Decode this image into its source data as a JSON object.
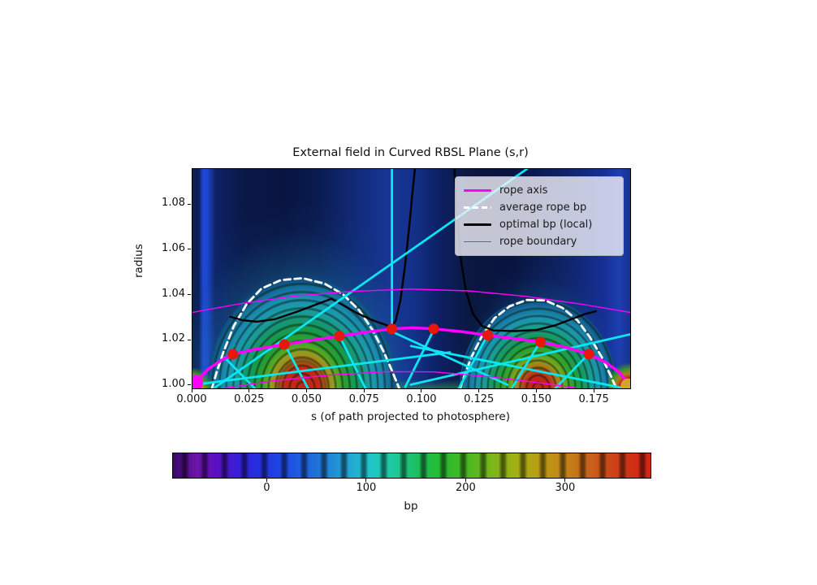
{
  "figure": {
    "background": "#ffffff"
  },
  "chart_data": {
    "type": "heatmap",
    "title": "External field in Curved RBSL Plane (s,r)",
    "xlabel": "s (of path projected to photosphere)",
    "ylabel": "radius",
    "xlim": [
      0.0,
      0.1905
    ],
    "ylim": [
      0.9989,
      1.0959
    ],
    "grid": false,
    "x_ticks": {
      "values": [
        0.0,
        0.025,
        0.05,
        0.075,
        0.1,
        0.125,
        0.15,
        0.175
      ],
      "labels": [
        "0.000",
        "0.025",
        "0.050",
        "0.075",
        "0.100",
        "0.125",
        "0.150",
        "0.175"
      ]
    },
    "y_ticks": {
      "values": [
        1.0,
        1.02,
        1.04,
        1.06,
        1.08
      ],
      "labels": [
        "1.00",
        "1.02",
        "1.04",
        "1.06",
        "1.08"
      ]
    },
    "colorbar": {
      "label": "bp",
      "tick_values": [
        0,
        100,
        200,
        300
      ],
      "tick_labels": [
        "0",
        "100",
        "200",
        "300"
      ],
      "vmin": -95,
      "vmax": 385,
      "gradient": [
        [
          "#38076a",
          0
        ],
        [
          "#6d15a8",
          5
        ],
        [
          "#5b10c2",
          9
        ],
        [
          "#3520d8",
          14
        ],
        [
          "#2430e0",
          18
        ],
        [
          "#1e4ee4",
          24
        ],
        [
          "#2070d8",
          30
        ],
        [
          "#22a0d4",
          36
        ],
        [
          "#1fc4cc",
          41
        ],
        [
          "#1ec9a0",
          46
        ],
        [
          "#1cc060",
          51
        ],
        [
          "#26bc30",
          56
        ],
        [
          "#4cb822",
          62
        ],
        [
          "#7cb61a",
          67
        ],
        [
          "#a4b014",
          72
        ],
        [
          "#bc9c14",
          77
        ],
        [
          "#c48418",
          82
        ],
        [
          "#c8641a",
          87
        ],
        [
          "#cc4418",
          92
        ],
        [
          "#d22c16",
          97
        ],
        [
          "#d42414",
          100
        ]
      ]
    },
    "legend": {
      "position": "upper right",
      "items": [
        {
          "label": "rope axis",
          "color": "#ff00ff",
          "lw": 3.5,
          "dash": "solid"
        },
        {
          "label": "average rope bp",
          "color": "#ffffff",
          "lw": 3.0,
          "dash": "dashed"
        },
        {
          "label": "optimal bp (local)",
          "color": "#000000",
          "lw": 2.4,
          "dash": "solid"
        },
        {
          "label": "rope boundary",
          "color": "#ff00ff",
          "lw": 1.4,
          "dash": "solid"
        }
      ]
    },
    "series": {
      "rope_axis": {
        "color": "#ff00ff",
        "lw": 3.5,
        "points": [
          [
            0.0005,
            1.0012
          ],
          [
            0.003,
            1.0035
          ],
          [
            0.007,
            1.0075
          ],
          [
            0.012,
            1.011
          ],
          [
            0.0176,
            1.014
          ],
          [
            0.028,
            1.0163
          ],
          [
            0.04,
            1.0183
          ],
          [
            0.052,
            1.0202
          ],
          [
            0.064,
            1.022
          ],
          [
            0.076,
            1.0238
          ],
          [
            0.0868,
            1.0252
          ],
          [
            0.096,
            1.0257
          ],
          [
            0.105,
            1.0252
          ],
          [
            0.117,
            1.024
          ],
          [
            0.1285,
            1.0224
          ],
          [
            0.14,
            1.0209
          ],
          [
            0.1514,
            1.0194
          ],
          [
            0.162,
            1.0172
          ],
          [
            0.1725,
            1.014
          ],
          [
            0.18,
            1.0103
          ],
          [
            0.1855,
            1.0062
          ],
          [
            0.1895,
            1.0012
          ]
        ]
      },
      "rope_boundary": {
        "color": "#ff00ff",
        "lw": 1.4,
        "paths": [
          [
            [
              0.0,
              1.0325
            ],
            [
              0.02,
              1.0362
            ],
            [
              0.045,
              1.0398
            ],
            [
              0.07,
              1.0418
            ],
            [
              0.095,
              1.0428
            ],
            [
              0.12,
              1.042
            ],
            [
              0.145,
              1.0396
            ],
            [
              0.17,
              1.036
            ],
            [
              0.1905,
              1.0325
            ]
          ],
          [
            [
              0.0135,
              0.9989
            ],
            [
              0.035,
              1.0022
            ],
            [
              0.06,
              1.0048
            ],
            [
              0.085,
              1.0063
            ],
            [
              0.105,
              1.0062
            ],
            [
              0.13,
              1.004
            ],
            [
              0.155,
              1.0008
            ],
            [
              0.168,
              0.9989
            ]
          ]
        ]
      },
      "average_rope_bp_contour": {
        "color": "#ffffff",
        "lw": 2.8,
        "dash": "8 5",
        "paths": [
          [
            [
              0.0085,
              0.9989
            ],
            [
              0.0105,
              1.006
            ],
            [
              0.0135,
              1.015
            ],
            [
              0.018,
              1.0265
            ],
            [
              0.0235,
              1.036
            ],
            [
              0.03,
              1.043
            ],
            [
              0.0385,
              1.0468
            ],
            [
              0.048,
              1.0476
            ],
            [
              0.0575,
              1.0452
            ],
            [
              0.0655,
              1.0405
            ],
            [
              0.0725,
              1.0335
            ],
            [
              0.0785,
              1.0245
            ],
            [
              0.0835,
              1.0145
            ],
            [
              0.0875,
              1.005
            ],
            [
              0.09,
              0.9989
            ]
          ],
          [
            [
              0.1165,
              0.9989
            ],
            [
              0.1185,
              1.005
            ],
            [
              0.1215,
              1.013
            ],
            [
              0.126,
              1.022
            ],
            [
              0.1315,
              1.03
            ],
            [
              0.138,
              1.0352
            ],
            [
              0.1455,
              1.038
            ],
            [
              0.1535,
              1.0378
            ],
            [
              0.161,
              1.0345
            ],
            [
              0.1675,
              1.029
            ],
            [
              0.173,
              1.0215
            ],
            [
              0.178,
              1.013
            ],
            [
              0.182,
              1.0045
            ],
            [
              0.1845,
              0.9989
            ]
          ]
        ]
      },
      "optimal_bp_local": {
        "color": "#000000",
        "lw": 2.4,
        "paths": [
          [
            [
              0.0165,
              1.0305
            ],
            [
              0.022,
              1.029
            ],
            [
              0.028,
              1.0284
            ],
            [
              0.036,
              1.0295
            ],
            [
              0.046,
              1.033
            ],
            [
              0.056,
              1.0368
            ],
            [
              0.0605,
              1.0385
            ],
            [
              0.065,
              1.036
            ],
            [
              0.072,
              1.032
            ],
            [
              0.079,
              1.0288
            ],
            [
              0.0845,
              1.0268
            ],
            [
              0.0868,
              1.0262
            ],
            [
              0.0885,
              1.029
            ],
            [
              0.0905,
              1.038
            ],
            [
              0.0925,
              1.053
            ],
            [
              0.0945,
              1.072
            ],
            [
              0.096,
              1.088
            ],
            [
              0.0968,
              1.0959
            ]
          ],
          [
            [
              0.114,
              1.0959
            ],
            [
              0.1152,
              1.076
            ],
            [
              0.1168,
              1.056
            ],
            [
              0.119,
              1.042
            ],
            [
              0.122,
              1.032
            ],
            [
              0.126,
              1.0265
            ],
            [
              0.131,
              1.0245
            ],
            [
              0.14,
              1.0242
            ],
            [
              0.15,
              1.0248
            ],
            [
              0.158,
              1.0268
            ],
            [
              0.165,
              1.0295
            ],
            [
              0.171,
              1.0318
            ],
            [
              0.1755,
              1.033
            ]
          ]
        ]
      },
      "field_chords": {
        "color": "#0ae6f2",
        "lw": 2.8,
        "segments": [
          [
            [
              0.008,
              0.998
            ],
            [
              0.1455,
              1.0959
            ]
          ],
          [
            [
              0.0868,
              1.025
            ],
            [
              0.0868,
              1.0959
            ]
          ],
          [
            [
              0.0005,
              1.0005
            ],
            [
              0.112,
              1.0148
            ]
          ],
          [
            [
              0.0868,
              1.024
            ],
            [
              0.137,
              1.0005
            ]
          ],
          [
            [
              0.0951,
              1.0176
            ],
            [
              0.1877,
              0.999
            ]
          ],
          [
            [
              0.095,
              1.0005
            ],
            [
              0.1905,
              1.0228
            ]
          ],
          [
            [
              0.014,
              1.0125
            ],
            [
              0.028,
              0.998
            ]
          ],
          [
            [
              0.04,
              1.0185
            ],
            [
              0.0505,
              0.9985
            ]
          ],
          [
            [
              0.064,
              1.022
            ],
            [
              0.0755,
              0.9985
            ]
          ],
          [
            [
              0.105,
              1.0248
            ],
            [
              0.0926,
              0.9995
            ]
          ],
          [
            [
              0.1285,
              1.0226
            ],
            [
              0.116,
              0.999
            ]
          ],
          [
            [
              0.1514,
              1.0196
            ],
            [
              0.139,
              0.999
            ]
          ],
          [
            [
              0.1725,
              1.0142
            ],
            [
              0.158,
              0.999
            ]
          ]
        ]
      }
    },
    "markers": {
      "axis_points": {
        "color": "#e8170e",
        "radius": 6.5,
        "points": [
          [
            0.0176,
            1.014
          ],
          [
            0.04,
            1.0183
          ],
          [
            0.064,
            1.022
          ],
          [
            0.0868,
            1.0252
          ],
          [
            0.105,
            1.0252
          ],
          [
            0.1285,
            1.0224
          ],
          [
            0.1514,
            1.0194
          ],
          [
            0.1725,
            1.014
          ]
        ]
      },
      "left_footpoint": {
        "color": "#ff00ff",
        "radius": 9,
        "point": [
          0.0015,
          1.0015
        ]
      },
      "right_footpoint": {
        "color": "#d4a32c",
        "radius": 9,
        "point": [
          0.1895,
          1.0
        ]
      }
    }
  }
}
